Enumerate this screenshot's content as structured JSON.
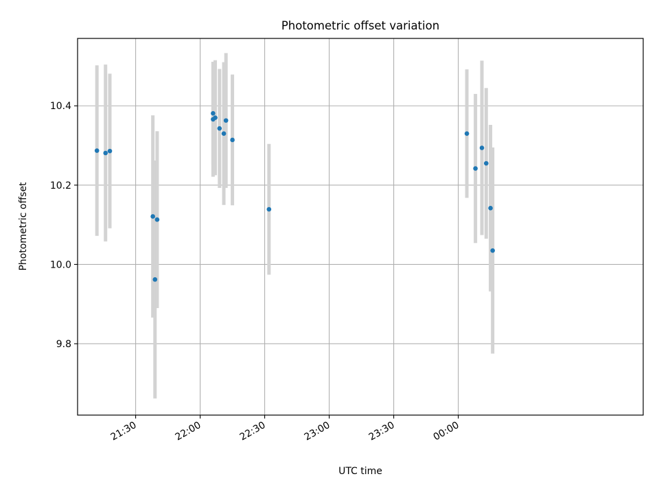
{
  "chart_data": {
    "type": "scatter",
    "title": "Photometric offset variation",
    "xlabel": "UTC time",
    "ylabel": "Photometric offset",
    "x_axis": {
      "kind": "time",
      "range": [
        "21:03",
        "01:26"
      ],
      "ticks": [
        "21:30",
        "22:00",
        "22:30",
        "23:00",
        "23:30",
        "00:00"
      ]
    },
    "y_axis": {
      "range": [
        9.62,
        10.57
      ],
      "ticks": [
        9.8,
        10.0,
        10.2,
        10.4
      ]
    },
    "grid": true,
    "legend": "none",
    "colors": {
      "points": "#1f77b4",
      "errorbars": "#d3d3d3",
      "grid": "#b0b0b0"
    },
    "series": [
      {
        "points": [
          {
            "t": "21:12",
            "y": 10.287,
            "err": 0.215
          },
          {
            "t": "21:16",
            "y": 10.281,
            "err": 0.223
          },
          {
            "t": "21:18",
            "y": 10.286,
            "err": 0.195
          },
          {
            "t": "21:38",
            "y": 10.121,
            "err": 0.255
          },
          {
            "t": "21:39",
            "y": 9.962,
            "err": 0.3
          },
          {
            "t": "21:40",
            "y": 10.113,
            "err": 0.223
          },
          {
            "t": "22:06",
            "y": 10.366,
            "err": 0.145
          },
          {
            "t": "22:06",
            "y": 10.381,
            "err": 0.13
          },
          {
            "t": "22:07",
            "y": 10.37,
            "err": 0.145
          },
          {
            "t": "22:09",
            "y": 10.343,
            "err": 0.15
          },
          {
            "t": "22:11",
            "y": 10.33,
            "err": 0.18
          },
          {
            "t": "22:12",
            "y": 10.363,
            "err": 0.17
          },
          {
            "t": "22:15",
            "y": 10.314,
            "err": 0.165
          },
          {
            "t": "22:32",
            "y": 10.139,
            "err": 0.165
          },
          {
            "t": "00:04",
            "y": 10.33,
            "err": 0.162
          },
          {
            "t": "00:08",
            "y": 10.242,
            "err": 0.188
          },
          {
            "t": "00:11",
            "y": 10.294,
            "err": 0.22
          },
          {
            "t": "00:13",
            "y": 10.255,
            "err": 0.19
          },
          {
            "t": "00:15",
            "y": 10.142,
            "err": 0.21
          },
          {
            "t": "00:16",
            "y": 10.035,
            "err": 0.26
          }
        ]
      }
    ]
  }
}
